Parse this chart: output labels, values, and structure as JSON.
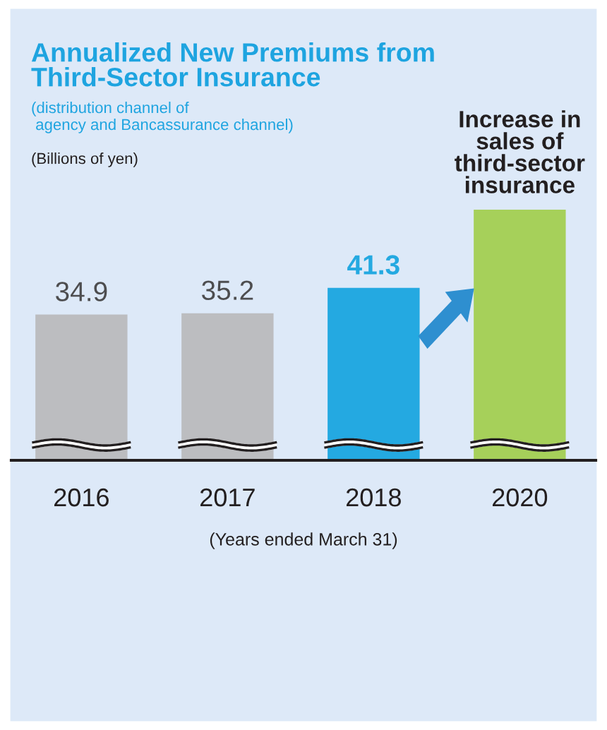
{
  "chart_data": {
    "type": "bar",
    "title": "Annualized New Premiums from\nThird-Sector Insurance",
    "subtitle": "(distribution channel of\n agency and Bancassurance channel)",
    "ylabel": "(Billions of yen)",
    "xlabel": "(Years ended March 31)",
    "categories": [
      "2016",
      "2017",
      "2018",
      "2020"
    ],
    "values": [
      34.9,
      35.2,
      41.3,
      60
    ],
    "colors": [
      "#bcbdc0",
      "#bcbdc0",
      "#24a9e1",
      "#a6d05a"
    ],
    "value_labels": [
      "34.9",
      "35.2",
      "41.3",
      null
    ],
    "tick_labels": "x",
    "grid": false,
    "legend": false,
    "annotations": [
      {
        "text": "Increase in\nsales of\nthird-sector\ninsurance",
        "x": "2020",
        "y": 60
      }
    ]
  }
}
